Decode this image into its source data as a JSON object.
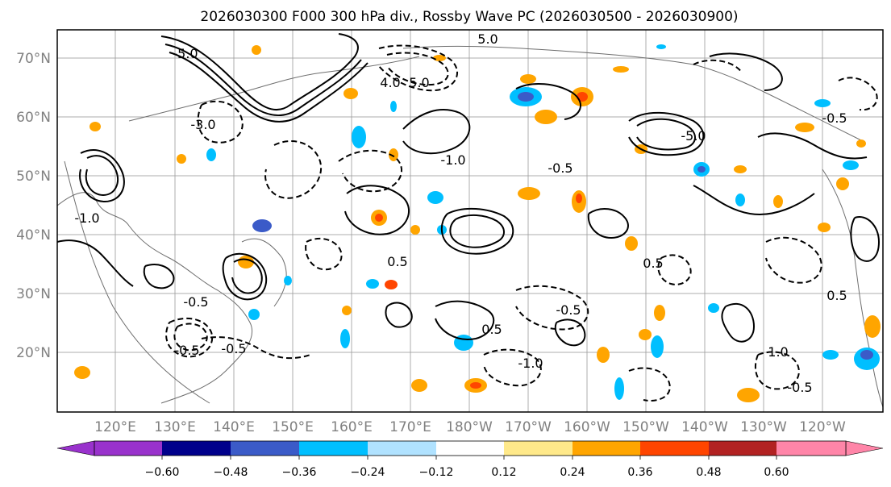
{
  "title": "2026030300 F000 300 hPa div., Rossby Wave PC (2026030500 - 2026030900)",
  "map": {
    "lat_labels": [
      "70°N",
      "60°N",
      "50°N",
      "40°N",
      "30°N",
      "20°N"
    ],
    "lon_labels": [
      "120°E",
      "130°E",
      "140°E",
      "150°E",
      "160°E",
      "170°E",
      "180°W",
      "170°W",
      "160°W",
      "150°W",
      "140°W",
      "130°W",
      "120°W"
    ],
    "contour_labels": [
      "5.0",
      "5.0",
      "-5.0",
      "4.0",
      "-1.0",
      "-0.5",
      "-0.5",
      "-3.0",
      "0.5",
      "-1.0",
      "-0.5",
      "-0.5",
      "-0.5",
      "1.0",
      "-0.5",
      "0.5",
      "-1.0",
      "0.5",
      "-0.5",
      "-5.0",
      "0.5"
    ]
  },
  "colorbar": {
    "ticks": [
      "−0.60",
      "−0.48",
      "−0.36",
      "−0.24",
      "−0.12",
      "0.12",
      "0.24",
      "0.36",
      "0.48",
      "0.60"
    ],
    "colors": [
      "#9932cc",
      "#00008b",
      "#3b5bc8",
      "#00bfff",
      "#b0e2ff",
      "#ffffff",
      "#ffe98a",
      "#ffa500",
      "#ff4500",
      "#b22222",
      "#ff85a8"
    ]
  }
}
